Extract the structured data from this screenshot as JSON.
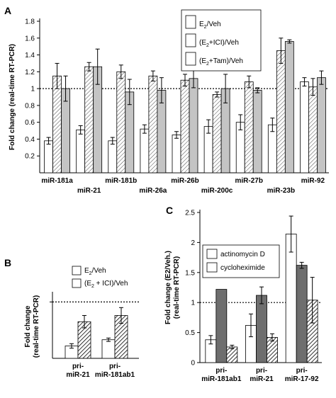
{
  "styles": {
    "E2/Veh": "#ffffff",
    "(E2+ICI)/Veh": "hatch-light",
    "(E2+Tam)/Veh": "#c4c4c4",
    "(E2 + ICI)/Veh": "hatch-dark",
    "actinomycin D": "#6e6e6e",
    "cycloheximide": "hatch-dark"
  },
  "chart_data": [
    {
      "panel": "A",
      "type": "bar",
      "ylabel": "Fold change (real-time RT-PCR)",
      "ylim": [
        0,
        1.8
      ],
      "yticks": [
        "0.2",
        "0.4",
        "0.6",
        "0.8",
        "1",
        "1.2",
        "1.4",
        "1.6",
        "1.8"
      ],
      "reference_line": 1,
      "legend_position": "top-right",
      "legend": [
        {
          "pre": "E",
          "sub": "2",
          "post": "/Veh"
        },
        {
          "pre": "(E",
          "sub": "2",
          "post": "+ICI)/Veh"
        },
        {
          "pre": "(E",
          "sub": "2",
          "post": "+Tam)/Veh"
        }
      ],
      "categories": [
        "miR-181a",
        "miR-21",
        "miR-181b",
        "miR-26a",
        "miR-26b",
        "miR-200c",
        "miR-27b",
        "miR-23b",
        "miR-92"
      ],
      "series": [
        {
          "name": "E2/Veh",
          "values": [
            0.38,
            0.51,
            0.38,
            0.52,
            0.45,
            0.55,
            0.6,
            0.57,
            1.08
          ],
          "errors": [
            0.04,
            0.05,
            0.04,
            0.05,
            0.04,
            0.08,
            0.09,
            0.08,
            0.05
          ]
        },
        {
          "name": "(E2+ICI)/Veh",
          "values": [
            1.15,
            1.26,
            1.2,
            1.15,
            1.1,
            0.93,
            1.08,
            1.45,
            1.02
          ],
          "errors": [
            0.15,
            0.05,
            0.08,
            0.06,
            0.07,
            0.03,
            0.07,
            0.15,
            0.1
          ]
        },
        {
          "name": "(E2+Tam)/Veh",
          "values": [
            1.0,
            1.26,
            0.96,
            0.98,
            1.12,
            1.0,
            0.98,
            1.56,
            1.13
          ],
          "errors": [
            0.15,
            0.21,
            0.15,
            0.15,
            0.11,
            0.17,
            0.03,
            0.02,
            0.08
          ]
        }
      ]
    },
    {
      "panel": "B",
      "type": "bar",
      "ylabel": "Fold change (real-time RT-PCR)",
      "reference_line": 1,
      "legend_position": "top",
      "legend": [
        {
          "pre": "E",
          "sub": "2",
          "post": "/Veh"
        },
        {
          "pre": "(E",
          "sub": "2",
          "post": " + ICI)/Veh"
        }
      ],
      "categories": [
        [
          "pri-",
          "miR-21"
        ],
        [
          "pri-",
          "miR-181ab1"
        ]
      ],
      "series": [
        {
          "name": "E2/Veh",
          "values": [
            0.22,
            0.33
          ],
          "errors": [
            0.04,
            0.03
          ]
        },
        {
          "name": "(E2 + ICI)/Veh",
          "values": [
            0.65,
            0.76
          ],
          "errors": [
            0.11,
            0.14
          ]
        }
      ]
    },
    {
      "panel": "C",
      "type": "bar",
      "ylabel": "Fold change (E2/Veh.) (real-time RT-PCR)",
      "ylim": [
        0,
        2.5
      ],
      "yticks": [
        "0",
        "0.5",
        "1",
        "1.5",
        "2",
        "2.5"
      ],
      "reference_line": 1,
      "legend_position": "center-left",
      "legend": [
        {
          "pre": "actinomycin D",
          "sub": "",
          "post": ""
        },
        {
          "pre": "cycloheximide",
          "sub": "",
          "post": ""
        }
      ],
      "categories": [
        [
          "pri-",
          "miR-181ab1"
        ],
        [
          "pri-",
          "miR-21"
        ],
        [
          "pri-",
          "miR-17-92"
        ]
      ],
      "series": [
        {
          "name": "E2/Veh",
          "values": [
            0.38,
            0.62,
            2.14
          ],
          "errors": [
            0.07,
            0.19,
            0.3
          ]
        },
        {
          "name": "actinomycin D",
          "values": [
            1.22,
            1.12,
            1.62
          ],
          "errors": [
            0,
            0.14,
            0.05
          ]
        },
        {
          "name": "cycloheximide",
          "values": [
            0.26,
            0.42,
            1.04
          ],
          "errors": [
            0.03,
            0.06,
            0.38
          ]
        }
      ]
    }
  ]
}
